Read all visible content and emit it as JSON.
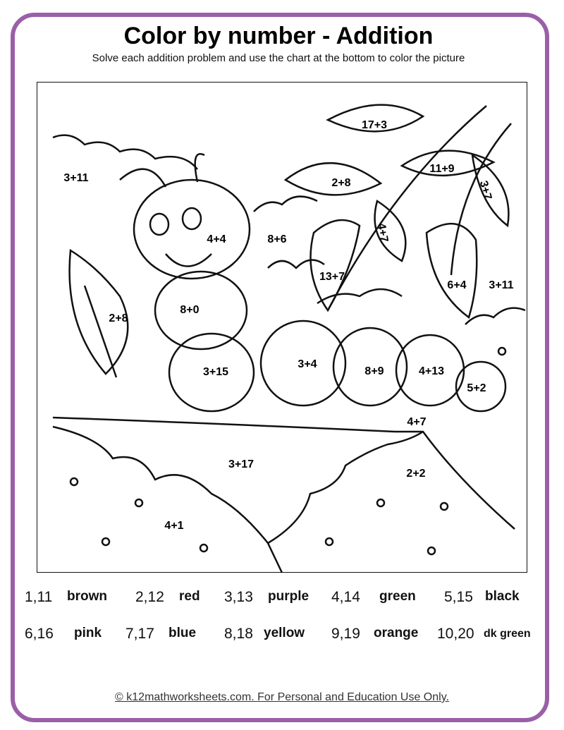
{
  "header": {
    "title": "Color by number - Addition",
    "subtitle": "Solve each addition problem and use the chart at the bottom to color the picture"
  },
  "picture": {
    "problems": [
      "17+3",
      "3+11",
      "2+8",
      "11+9",
      "3+7",
      "4+4",
      "8+6",
      "4+7",
      "13+7",
      "6+4",
      "3+11",
      "2+8",
      "8+0",
      "3+15",
      "3+4",
      "8+9",
      "4+13",
      "5+2",
      "4+7",
      "3+17",
      "2+2",
      "4+1"
    ]
  },
  "legend": [
    {
      "numbers": "1,11",
      "color": "brown"
    },
    {
      "numbers": "2,12",
      "color": "red"
    },
    {
      "numbers": "3,13",
      "color": "purple"
    },
    {
      "numbers": "4,14",
      "color": "green"
    },
    {
      "numbers": "5,15",
      "color": "black"
    },
    {
      "numbers": "6,16",
      "color": "pink"
    },
    {
      "numbers": "7,17",
      "color": "blue"
    },
    {
      "numbers": "8,18",
      "color": "yellow"
    },
    {
      "numbers": "9,19",
      "color": "orange"
    },
    {
      "numbers": "10,20",
      "color": "dk green"
    }
  ],
  "footer": "© k12mathworksheets.com. For Personal and Education Use Only.",
  "colors": {
    "border": "#9b5fa8"
  }
}
